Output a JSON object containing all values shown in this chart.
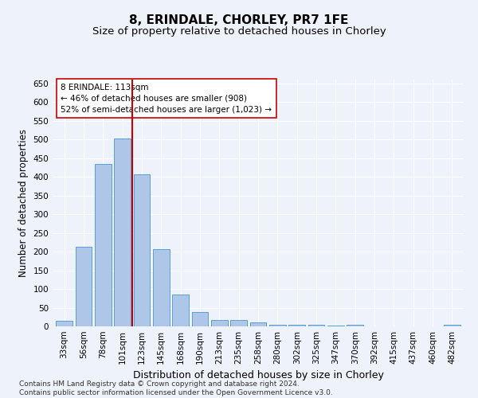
{
  "title": "8, ERINDALE, CHORLEY, PR7 1FE",
  "subtitle": "Size of property relative to detached houses in Chorley",
  "xlabel": "Distribution of detached houses by size in Chorley",
  "ylabel": "Number of detached properties",
  "categories": [
    "33sqm",
    "56sqm",
    "78sqm",
    "101sqm",
    "123sqm",
    "145sqm",
    "168sqm",
    "190sqm",
    "213sqm",
    "235sqm",
    "258sqm",
    "280sqm",
    "302sqm",
    "325sqm",
    "347sqm",
    "370sqm",
    "392sqm",
    "415sqm",
    "437sqm",
    "460sqm",
    "482sqm"
  ],
  "values": [
    15,
    212,
    435,
    503,
    407,
    207,
    85,
    38,
    18,
    18,
    11,
    5,
    5,
    5,
    2,
    5,
    0,
    0,
    0,
    0,
    5
  ],
  "bar_color": "#aec6e8",
  "bar_edge_color": "#5a9fd4",
  "vline_color": "#cc0000",
  "annotation_text": "8 ERINDALE: 113sqm\n← 46% of detached houses are smaller (908)\n52% of semi-detached houses are larger (1,023) →",
  "annotation_box_color": "#ffffff",
  "annotation_box_edge_color": "#cc0000",
  "ylim": [
    0,
    660
  ],
  "yticks": [
    0,
    50,
    100,
    150,
    200,
    250,
    300,
    350,
    400,
    450,
    500,
    550,
    600,
    650
  ],
  "background_color": "#eef2fb",
  "grid_color": "#ffffff",
  "footer": "Contains HM Land Registry data © Crown copyright and database right 2024.\nContains public sector information licensed under the Open Government Licence v3.0.",
  "title_fontsize": 11,
  "subtitle_fontsize": 9.5,
  "xlabel_fontsize": 9,
  "ylabel_fontsize": 8.5,
  "tick_fontsize": 7.5,
  "annotation_fontsize": 7.5,
  "footer_fontsize": 6.5,
  "vline_pos": 3.5
}
